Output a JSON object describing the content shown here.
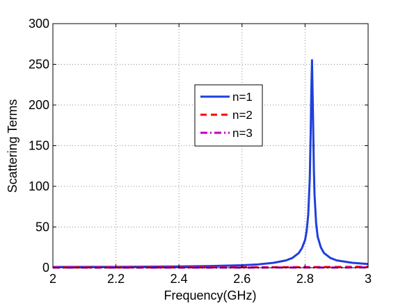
{
  "chart_data": {
    "type": "line",
    "title": "",
    "xlabel": "Frequency(GHz)",
    "ylabel": "Scattering Terms",
    "xlim": [
      2,
      3
    ],
    "ylim": [
      0,
      300
    ],
    "xticks": [
      2,
      2.2,
      2.4,
      2.6,
      2.8,
      3
    ],
    "xtick_labels": [
      "2",
      "2.2",
      "2.4",
      "2.6",
      "2.8",
      "3"
    ],
    "yticks": [
      0,
      50,
      100,
      150,
      200,
      250,
      300
    ],
    "ytick_labels": [
      "0",
      "50",
      "100",
      "150",
      "200",
      "250",
      "300"
    ],
    "grid": true,
    "grid_style": "dotted",
    "legend_position": "center-right",
    "series": [
      {
        "name": "n=1",
        "color": "#1f3fdc",
        "line_style": "solid",
        "x": [
          2.0,
          2.2,
          2.4,
          2.5,
          2.6,
          2.65,
          2.7,
          2.74,
          2.76,
          2.78,
          2.79,
          2.8,
          2.805,
          2.81,
          2.815,
          2.818,
          2.82,
          2.822,
          2.825,
          2.828,
          2.83,
          2.835,
          2.84,
          2.85,
          2.86,
          2.88,
          2.9,
          2.95,
          3.0
        ],
        "y": [
          0.8,
          1.0,
          1.5,
          2.0,
          3.0,
          4.0,
          6.0,
          9.0,
          12.0,
          18.0,
          24.0,
          34.0,
          45.0,
          65.0,
          110.0,
          170.0,
          220.0,
          255.0,
          190.0,
          120.0,
          90.0,
          55.0,
          38.0,
          25.0,
          18.0,
          12.0,
          9.0,
          6.0,
          4.5
        ]
      },
      {
        "name": "n=2",
        "color": "#ff0000",
        "line_style": "dashed",
        "x": [
          2.0,
          2.2,
          2.4,
          2.6,
          2.8,
          2.9,
          3.0
        ],
        "y": [
          0.3,
          0.3,
          0.4,
          0.5,
          0.7,
          0.9,
          1.1
        ]
      },
      {
        "name": "n=3",
        "color": "#bf00bf",
        "line_style": "dashdot",
        "x": [
          2.0,
          2.5,
          2.8,
          3.0
        ],
        "y": [
          0.1,
          0.1,
          0.2,
          0.3
        ]
      }
    ]
  }
}
